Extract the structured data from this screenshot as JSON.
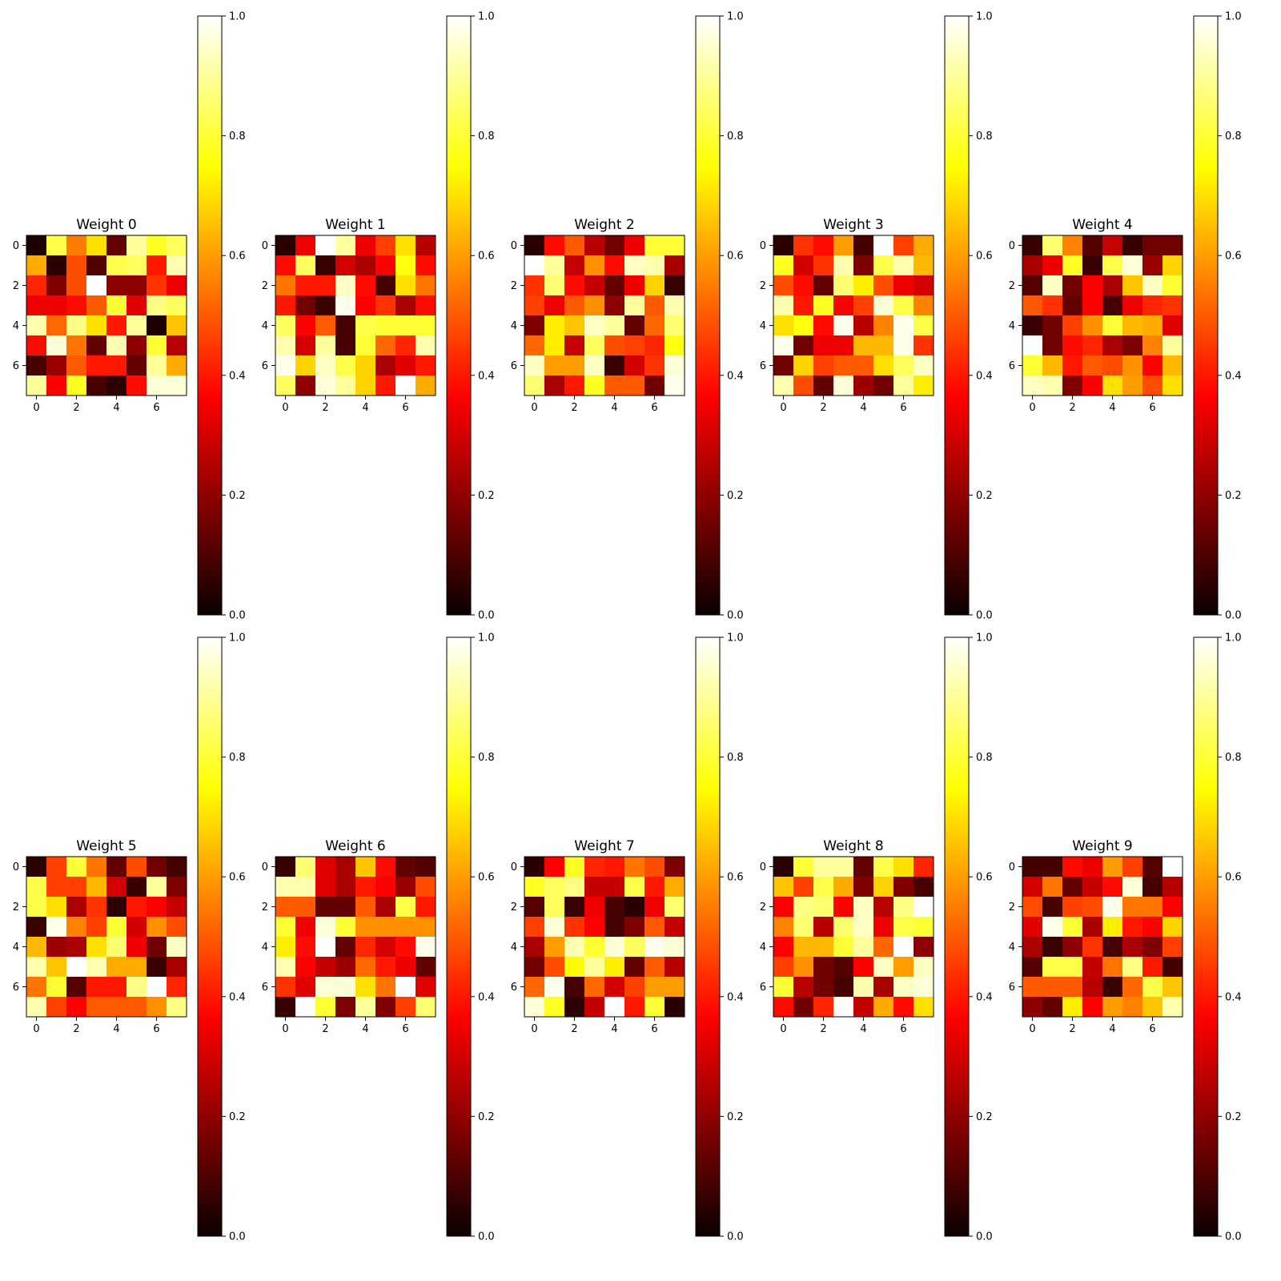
{
  "chart_data": {
    "type": "heatmap",
    "colormap": "hot",
    "colorbar_ticks": [
      "0.0",
      "0.2",
      "0.4",
      "0.6",
      "0.8",
      "1.0"
    ],
    "colorbar_range": [
      0,
      1
    ],
    "x_ticks": [
      "0",
      "2",
      "4",
      "6"
    ],
    "y_ticks": [
      "0",
      "2",
      "4",
      "6"
    ],
    "panels": [
      {
        "title": "Weight 0",
        "values": [
          [
            0.0,
            0.82,
            0.55,
            0.7,
            0.1,
            0.9,
            0.78,
            0.84
          ],
          [
            0.62,
            0.02,
            0.48,
            0.08,
            0.82,
            0.84,
            0.4,
            0.92
          ],
          [
            0.42,
            0.14,
            0.48,
            1.0,
            0.16,
            0.16,
            0.44,
            0.3
          ],
          [
            0.3,
            0.3,
            0.38,
            0.5,
            0.8,
            0.28,
            0.88,
            0.84
          ],
          [
            0.92,
            0.52,
            0.88,
            0.7,
            0.4,
            0.9,
            0.0,
            0.66
          ],
          [
            0.38,
            0.96,
            0.54,
            0.1,
            0.92,
            0.16,
            0.8,
            0.22
          ],
          [
            0.06,
            0.18,
            0.5,
            0.4,
            0.4,
            0.1,
            0.9,
            0.62
          ],
          [
            0.9,
            0.34,
            0.78,
            0.06,
            0.02,
            0.38,
            0.96,
            0.96
          ]
        ]
      },
      {
        "title": "Weight 1",
        "values": [
          [
            0.02,
            0.3,
            1.0,
            0.9,
            0.3,
            0.46,
            0.7,
            0.22
          ],
          [
            0.38,
            0.84,
            0.04,
            0.26,
            0.2,
            0.32,
            0.76,
            0.38
          ],
          [
            0.54,
            0.4,
            0.4,
            0.94,
            0.38,
            0.06,
            0.7,
            0.54
          ],
          [
            0.4,
            0.12,
            0.04,
            0.98,
            0.34,
            0.44,
            0.2,
            0.38
          ],
          [
            0.84,
            0.34,
            0.5,
            0.06,
            0.82,
            0.8,
            0.8,
            0.8
          ],
          [
            0.92,
            0.26,
            0.9,
            0.06,
            0.8,
            0.52,
            0.42,
            0.92
          ],
          [
            0.98,
            0.68,
            0.94,
            0.82,
            0.68,
            0.2,
            0.28,
            0.4
          ],
          [
            0.84,
            0.16,
            0.96,
            0.9,
            0.68,
            0.4,
            1.0,
            0.62
          ]
        ]
      },
      {
        "title": "Weight 2",
        "values": [
          [
            0.02,
            0.38,
            0.5,
            0.22,
            0.12,
            0.3,
            0.8,
            0.8
          ],
          [
            1.0,
            0.9,
            0.24,
            0.58,
            0.38,
            0.94,
            0.92,
            0.2
          ],
          [
            0.44,
            0.86,
            0.38,
            0.24,
            0.1,
            0.3,
            0.68,
            0.04
          ],
          [
            0.46,
            0.3,
            0.5,
            0.58,
            0.16,
            0.9,
            0.5,
            0.92
          ],
          [
            0.14,
            0.72,
            0.66,
            0.94,
            0.9,
            0.1,
            0.52,
            0.86
          ],
          [
            0.52,
            0.72,
            0.24,
            0.84,
            0.48,
            0.46,
            0.42,
            0.76
          ],
          [
            0.94,
            0.6,
            0.6,
            0.94,
            0.04,
            0.26,
            0.44,
            0.96
          ],
          [
            0.86,
            0.2,
            0.4,
            0.78,
            0.5,
            0.5,
            0.12,
            0.98
          ]
        ]
      },
      {
        "title": "Weight 3",
        "values": [
          [
            0.02,
            0.44,
            0.38,
            0.6,
            0.06,
            1.0,
            0.46,
            0.62
          ],
          [
            0.78,
            0.26,
            0.44,
            0.92,
            0.14,
            0.82,
            0.92,
            0.64
          ],
          [
            0.48,
            0.38,
            0.1,
            0.86,
            0.72,
            0.48,
            0.3,
            0.26
          ],
          [
            0.92,
            0.4,
            0.78,
            0.32,
            0.46,
            0.96,
            0.82,
            0.56
          ],
          [
            0.7,
            0.76,
            0.38,
            0.98,
            0.22,
            0.56,
            0.98,
            0.82
          ],
          [
            0.98,
            0.12,
            0.3,
            0.3,
            0.64,
            0.64,
            0.98,
            0.44
          ],
          [
            0.12,
            0.68,
            0.46,
            0.5,
            0.5,
            0.7,
            0.84,
            0.94
          ],
          [
            0.92,
            0.48,
            0.1,
            0.96,
            0.18,
            0.12,
            0.9,
            0.72
          ]
        ]
      },
      {
        "title": "Weight 4",
        "values": [
          [
            0.04,
            0.86,
            0.56,
            0.08,
            0.24,
            0.04,
            0.12,
            0.12
          ],
          [
            0.2,
            0.3,
            0.78,
            0.04,
            0.82,
            0.96,
            0.18,
            0.68
          ],
          [
            0.08,
            0.94,
            0.12,
            0.32,
            0.2,
            0.66,
            0.94,
            0.8
          ],
          [
            0.5,
            0.44,
            0.1,
            0.32,
            0.06,
            0.3,
            0.42,
            0.44
          ],
          [
            0.04,
            0.12,
            0.46,
            0.58,
            0.8,
            0.64,
            0.62,
            0.28
          ],
          [
            1.0,
            0.12,
            0.38,
            0.42,
            0.2,
            0.14,
            0.56,
            0.9
          ],
          [
            0.8,
            0.64,
            0.4,
            0.5,
            0.48,
            0.58,
            0.36,
            0.64
          ],
          [
            0.94,
            0.92,
            0.14,
            0.34,
            0.7,
            0.6,
            0.48,
            0.7
          ]
        ]
      },
      {
        "title": "Weight 5",
        "values": [
          [
            0.02,
            0.46,
            0.8,
            0.54,
            0.1,
            0.48,
            0.12,
            0.06
          ],
          [
            0.82,
            0.46,
            0.46,
            0.64,
            0.26,
            0.04,
            0.9,
            0.14
          ],
          [
            0.82,
            0.7,
            0.2,
            0.44,
            0.02,
            0.4,
            0.32,
            0.24
          ],
          [
            0.04,
            0.98,
            0.56,
            0.46,
            0.8,
            0.26,
            0.58,
            0.48
          ],
          [
            0.64,
            0.18,
            0.2,
            0.7,
            0.86,
            0.3,
            0.12,
            0.94
          ],
          [
            0.92,
            0.66,
            1.0,
            0.92,
            0.62,
            0.62,
            0.04,
            0.2
          ],
          [
            0.54,
            0.8,
            0.08,
            0.4,
            0.4,
            0.88,
            1.0,
            0.42
          ],
          [
            0.92,
            0.46,
            0.36,
            0.5,
            0.5,
            0.5,
            0.58,
            0.88
          ]
        ]
      },
      {
        "title": "Weight 6",
        "values": [
          [
            0.04,
            0.86,
            0.28,
            0.2,
            0.66,
            0.38,
            0.1,
            0.08
          ],
          [
            0.92,
            0.92,
            0.28,
            0.2,
            0.4,
            0.32,
            0.18,
            0.48
          ],
          [
            0.5,
            0.5,
            0.1,
            0.1,
            0.5,
            0.2,
            0.82,
            0.4
          ],
          [
            0.8,
            0.3,
            0.96,
            0.8,
            0.58,
            0.58,
            0.58,
            0.58
          ],
          [
            0.72,
            0.38,
            1.0,
            0.1,
            0.42,
            0.26,
            0.38,
            0.98
          ],
          [
            0.92,
            0.36,
            0.24,
            0.18,
            0.52,
            0.4,
            0.3,
            0.1
          ],
          [
            0.44,
            0.28,
            0.96,
            0.96,
            0.7,
            0.54,
            1.0,
            0.28
          ],
          [
            0.04,
            1.0,
            0.8,
            0.14,
            0.9,
            0.14,
            0.46,
            0.86
          ]
        ]
      },
      {
        "title": "Weight 7",
        "values": [
          [
            0.02,
            0.34,
            0.78,
            0.42,
            0.4,
            0.54,
            0.48,
            0.14
          ],
          [
            0.78,
            0.84,
            0.88,
            0.24,
            0.24,
            0.82,
            0.4,
            0.62
          ],
          [
            0.08,
            0.84,
            0.04,
            0.3,
            0.06,
            0.02,
            0.3,
            0.86
          ],
          [
            0.46,
            0.96,
            0.44,
            0.34,
            0.06,
            0.14,
            0.5,
            0.24
          ],
          [
            0.2,
            0.6,
            0.92,
            0.8,
            0.96,
            0.84,
            0.98,
            0.96
          ],
          [
            0.12,
            0.48,
            0.74,
            0.9,
            0.72,
            0.1,
            0.5,
            0.22
          ],
          [
            0.52,
            0.98,
            0.06,
            0.52,
            0.26,
            0.46,
            0.6,
            0.6
          ],
          [
            0.96,
            0.78,
            0.02,
            0.24,
            1.0,
            0.4,
            0.8,
            0.02
          ]
        ]
      },
      {
        "title": "Weight 8",
        "values": [
          [
            0.02,
            0.8,
            0.9,
            0.9,
            0.1,
            0.82,
            0.7,
            0.42
          ],
          [
            0.66,
            0.46,
            0.82,
            0.62,
            0.14,
            0.68,
            0.14,
            0.06
          ],
          [
            0.36,
            0.88,
            0.86,
            0.32,
            0.94,
            0.22,
            0.88,
            1.0
          ],
          [
            0.56,
            0.86,
            0.22,
            0.86,
            0.94,
            0.3,
            0.82,
            0.8
          ],
          [
            0.36,
            0.64,
            0.64,
            0.8,
            0.9,
            0.52,
            1.0,
            0.16
          ],
          [
            0.46,
            0.58,
            0.12,
            0.08,
            0.32,
            0.94,
            0.6,
            0.94
          ],
          [
            0.8,
            0.22,
            0.12,
            0.06,
            0.92,
            0.2,
            0.94,
            0.96
          ],
          [
            0.38,
            0.12,
            0.42,
            1.0,
            0.24,
            0.62,
            0.38,
            0.7
          ]
        ]
      },
      {
        "title": "Weight 9",
        "values": [
          [
            0.06,
            0.06,
            0.38,
            0.3,
            0.6,
            0.46,
            0.08,
            1.0
          ],
          [
            0.26,
            0.54,
            0.1,
            0.24,
            0.38,
            0.96,
            0.06,
            0.22
          ],
          [
            0.48,
            0.06,
            0.46,
            0.48,
            0.98,
            0.54,
            0.54,
            0.36
          ],
          [
            0.28,
            0.98,
            0.8,
            0.2,
            0.72,
            0.4,
            0.34,
            0.68
          ],
          [
            0.2,
            0.04,
            0.16,
            0.44,
            0.06,
            0.2,
            0.14,
            0.46
          ],
          [
            0.08,
            0.82,
            0.82,
            0.24,
            0.54,
            0.88,
            0.4,
            0.06
          ],
          [
            0.5,
            0.5,
            0.5,
            0.22,
            0.04,
            0.52,
            0.82,
            0.66
          ],
          [
            0.16,
            0.1,
            0.72,
            0.34,
            0.6,
            0.56,
            0.66,
            0.92
          ]
        ]
      }
    ]
  }
}
